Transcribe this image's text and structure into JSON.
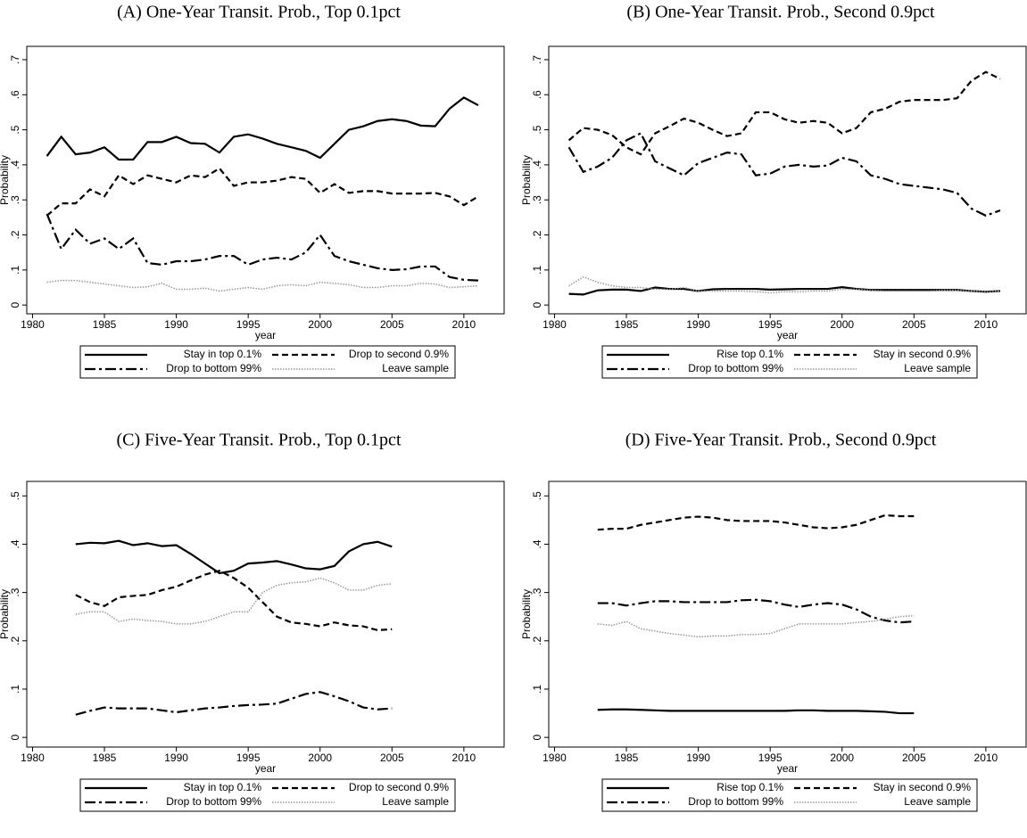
{
  "chart_data": [
    {
      "type": "line",
      "title": "(A) One-Year Transit. Prob., Top 0.1pct",
      "xlabel": "year",
      "ylabel": "Probability",
      "x": [
        1981,
        1982,
        1983,
        1984,
        1985,
        1986,
        1987,
        1988,
        1989,
        1990,
        1991,
        1992,
        1993,
        1994,
        1995,
        1996,
        1997,
        1998,
        1999,
        2000,
        2001,
        2002,
        2003,
        2004,
        2005,
        2006,
        2007,
        2008,
        2009,
        2010,
        2011
      ],
      "xlim": [
        1979.6,
        2012.8
      ],
      "xticks": [
        1980,
        1985,
        1990,
        1995,
        2000,
        2005,
        2010
      ],
      "ylim": [
        -0.025,
        0.738
      ],
      "yticks": [
        0,
        {
          "value": 0.1,
          "label": ".1"
        },
        {
          "value": 0.2,
          "label": ".2"
        },
        {
          "value": 0.3,
          "label": ".3"
        },
        {
          "value": 0.4,
          "label": ".4"
        },
        {
          "value": 0.5,
          "label": ".5"
        },
        {
          "value": 0.6,
          "label": ".6"
        },
        {
          "value": 0.7,
          "label": ".7"
        }
      ],
      "series": [
        {
          "name": "Stay in top 0.1%",
          "color": "#000000",
          "dash": "solid",
          "values": [
            0.425,
            0.48,
            0.43,
            0.435,
            0.45,
            0.415,
            0.415,
            0.465,
            0.465,
            0.48,
            0.462,
            0.46,
            0.435,
            0.48,
            0.487,
            0.475,
            0.46,
            0.45,
            0.44,
            0.42,
            0.46,
            0.5,
            0.51,
            0.525,
            0.53,
            0.525,
            0.512,
            0.51,
            0.56,
            0.592,
            0.57
          ]
        },
        {
          "name": "Drop to second 0.9%",
          "color": "#000000",
          "dash": "dash",
          "values": [
            0.255,
            0.29,
            0.29,
            0.33,
            0.31,
            0.37,
            0.345,
            0.37,
            0.36,
            0.35,
            0.37,
            0.365,
            0.39,
            0.34,
            0.35,
            0.35,
            0.355,
            0.365,
            0.36,
            0.32,
            0.345,
            0.32,
            0.325,
            0.325,
            0.318,
            0.318,
            0.318,
            0.32,
            0.31,
            0.285,
            0.31
          ]
        },
        {
          "name": "Drop to bottom 99%",
          "color": "#000000",
          "dash": "dashdot",
          "values": [
            0.26,
            0.16,
            0.215,
            0.175,
            0.19,
            0.16,
            0.19,
            0.12,
            0.115,
            0.125,
            0.125,
            0.13,
            0.14,
            0.14,
            0.115,
            0.13,
            0.135,
            0.13,
            0.15,
            0.2,
            0.14,
            0.125,
            0.115,
            0.105,
            0.1,
            0.102,
            0.11,
            0.11,
            0.08,
            0.072,
            0.07
          ]
        },
        {
          "name": "Leave sample",
          "color": "#999999",
          "dash": "dot",
          "values": [
            0.065,
            0.07,
            0.07,
            0.065,
            0.06,
            0.055,
            0.05,
            0.052,
            0.062,
            0.045,
            0.045,
            0.048,
            0.04,
            0.045,
            0.05,
            0.045,
            0.055,
            0.058,
            0.055,
            0.065,
            0.062,
            0.058,
            0.05,
            0.05,
            0.055,
            0.055,
            0.062,
            0.06,
            0.05,
            0.052,
            0.055
          ]
        }
      ]
    },
    {
      "type": "line",
      "title": "(B) One-Year Transit. Prob., Second 0.9pct",
      "xlabel": "year",
      "ylabel": "Probability",
      "x": [
        1981,
        1982,
        1983,
        1984,
        1985,
        1986,
        1987,
        1988,
        1989,
        1990,
        1991,
        1992,
        1993,
        1994,
        1995,
        1996,
        1997,
        1998,
        1999,
        2000,
        2001,
        2002,
        2003,
        2004,
        2005,
        2006,
        2007,
        2008,
        2009,
        2010,
        2011
      ],
      "xlim": [
        1979.6,
        2012.8
      ],
      "xticks": [
        1980,
        1985,
        1990,
        1995,
        2000,
        2005,
        2010
      ],
      "ylim": [
        -0.025,
        0.738
      ],
      "yticks": [
        0,
        {
          "value": 0.1,
          "label": ".1"
        },
        {
          "value": 0.2,
          "label": ".2"
        },
        {
          "value": 0.3,
          "label": ".3"
        },
        {
          "value": 0.4,
          "label": ".4"
        },
        {
          "value": 0.5,
          "label": ".5"
        },
        {
          "value": 0.6,
          "label": ".6"
        },
        {
          "value": 0.7,
          "label": ".7"
        }
      ],
      "series": [
        {
          "name": "Rise top 0.1%",
          "color": "#000000",
          "dash": "solid",
          "values": [
            0.032,
            0.03,
            0.042,
            0.044,
            0.044,
            0.04,
            0.05,
            0.046,
            0.046,
            0.04,
            0.045,
            0.046,
            0.046,
            0.046,
            0.044,
            0.045,
            0.046,
            0.046,
            0.046,
            0.051,
            0.046,
            0.043,
            0.043,
            0.043,
            0.043,
            0.043,
            0.043,
            0.043,
            0.04,
            0.038,
            0.04
          ]
        },
        {
          "name": "Stay in second 0.9%",
          "color": "#000000",
          "dash": "dash",
          "values": [
            0.47,
            0.505,
            0.5,
            0.485,
            0.45,
            0.43,
            0.49,
            0.51,
            0.532,
            0.52,
            0.5,
            0.482,
            0.49,
            0.55,
            0.55,
            0.53,
            0.52,
            0.525,
            0.52,
            0.49,
            0.505,
            0.55,
            0.56,
            0.58,
            0.585,
            0.585,
            0.585,
            0.59,
            0.64,
            0.665,
            0.645
          ]
        },
        {
          "name": "Drop to bottom 99%",
          "color": "#000000",
          "dash": "dashdot",
          "values": [
            0.45,
            0.38,
            0.395,
            0.42,
            0.47,
            0.49,
            0.41,
            0.39,
            0.37,
            0.405,
            0.42,
            0.435,
            0.43,
            0.37,
            0.375,
            0.395,
            0.4,
            0.395,
            0.398,
            0.42,
            0.41,
            0.37,
            0.36,
            0.345,
            0.34,
            0.335,
            0.33,
            0.32,
            0.275,
            0.255,
            0.27
          ]
        },
        {
          "name": "Leave sample",
          "color": "#999999",
          "dash": "dot",
          "values": [
            0.055,
            0.08,
            0.065,
            0.055,
            0.05,
            0.05,
            0.045,
            0.045,
            0.05,
            0.04,
            0.04,
            0.04,
            0.04,
            0.038,
            0.035,
            0.038,
            0.038,
            0.04,
            0.04,
            0.045,
            0.045,
            0.042,
            0.04,
            0.04,
            0.04,
            0.04,
            0.042,
            0.042,
            0.04,
            0.038,
            0.04
          ]
        }
      ]
    },
    {
      "type": "line",
      "title": "(C) Five-Year Transit. Prob., Top 0.1pct",
      "xlabel": "year",
      "ylabel": "Probability",
      "x": [
        1983,
        1984,
        1985,
        1986,
        1987,
        1988,
        1989,
        1990,
        1991,
        1992,
        1993,
        1994,
        1995,
        1996,
        1997,
        1998,
        1999,
        2000,
        2001,
        2002,
        2003,
        2004,
        2005
      ],
      "xlim": [
        1979.6,
        2012.8
      ],
      "xticks": [
        1980,
        1985,
        1990,
        1995,
        2000,
        2005,
        2010
      ],
      "ylim": [
        -0.02,
        0.53
      ],
      "yticks": [
        0,
        {
          "value": 0.1,
          "label": ".1"
        },
        {
          "value": 0.2,
          "label": ".2"
        },
        {
          "value": 0.3,
          "label": ".3"
        },
        {
          "value": 0.4,
          "label": ".4"
        },
        {
          "value": 0.5,
          "label": ".5"
        }
      ],
      "series": [
        {
          "name": "Stay in top 0.1%",
          "color": "#000000",
          "dash": "solid",
          "values": [
            0.4,
            0.403,
            0.402,
            0.407,
            0.398,
            0.402,
            0.396,
            0.398,
            0.38,
            0.36,
            0.34,
            0.345,
            0.36,
            0.362,
            0.365,
            0.358,
            0.35,
            0.348,
            0.355,
            0.385,
            0.4,
            0.405,
            0.395
          ]
        },
        {
          "name": "Drop to second 0.9%",
          "color": "#000000",
          "dash": "dash",
          "values": [
            0.295,
            0.28,
            0.272,
            0.29,
            0.293,
            0.295,
            0.305,
            0.312,
            0.325,
            0.337,
            0.345,
            0.33,
            0.31,
            0.28,
            0.25,
            0.238,
            0.235,
            0.23,
            0.238,
            0.232,
            0.23,
            0.222,
            0.224
          ]
        },
        {
          "name": "Drop to bottom 99%",
          "color": "#000000",
          "dash": "dashdot",
          "values": [
            0.047,
            0.055,
            0.062,
            0.06,
            0.06,
            0.06,
            0.056,
            0.052,
            0.056,
            0.06,
            0.062,
            0.065,
            0.067,
            0.068,
            0.07,
            0.08,
            0.09,
            0.094,
            0.085,
            0.075,
            0.062,
            0.058,
            0.06
          ]
        },
        {
          "name": "Leave sample",
          "color": "#999999",
          "dash": "dot",
          "values": [
            0.255,
            0.26,
            0.26,
            0.24,
            0.245,
            0.242,
            0.24,
            0.235,
            0.235,
            0.24,
            0.25,
            0.26,
            0.26,
            0.3,
            0.315,
            0.32,
            0.322,
            0.33,
            0.32,
            0.305,
            0.305,
            0.315,
            0.318
          ]
        }
      ]
    },
    {
      "type": "line",
      "title": "(D) Five-Year Transit. Prob., Second 0.9pct",
      "xlabel": "year",
      "ylabel": "Probability",
      "x": [
        1983,
        1984,
        1985,
        1986,
        1987,
        1988,
        1989,
        1990,
        1991,
        1992,
        1993,
        1994,
        1995,
        1996,
        1997,
        1998,
        1999,
        2000,
        2001,
        2002,
        2003,
        2004,
        2005
      ],
      "xlim": [
        1979.6,
        2012.8
      ],
      "xticks": [
        1980,
        1985,
        1990,
        1995,
        2000,
        2005,
        2010
      ],
      "ylim": [
        -0.02,
        0.53
      ],
      "yticks": [
        0,
        {
          "value": 0.1,
          "label": ".1"
        },
        {
          "value": 0.2,
          "label": ".2"
        },
        {
          "value": 0.3,
          "label": ".3"
        },
        {
          "value": 0.4,
          "label": ".4"
        },
        {
          "value": 0.5,
          "label": ".5"
        }
      ],
      "series": [
        {
          "name": "Rise top 0.1%",
          "color": "#000000",
          "dash": "solid",
          "values": [
            0.057,
            0.058,
            0.058,
            0.057,
            0.056,
            0.055,
            0.055,
            0.055,
            0.055,
            0.055,
            0.055,
            0.055,
            0.055,
            0.055,
            0.056,
            0.056,
            0.055,
            0.055,
            0.055,
            0.054,
            0.053,
            0.05,
            0.05
          ]
        },
        {
          "name": "Stay in second 0.9%",
          "color": "#000000",
          "dash": "dash",
          "values": [
            0.43,
            0.432,
            0.432,
            0.44,
            0.445,
            0.45,
            0.455,
            0.457,
            0.455,
            0.45,
            0.448,
            0.448,
            0.448,
            0.445,
            0.44,
            0.435,
            0.433,
            0.435,
            0.44,
            0.45,
            0.46,
            0.458,
            0.458
          ]
        },
        {
          "name": "Drop to bottom 99%",
          "color": "#000000",
          "dash": "dashdot",
          "values": [
            0.278,
            0.278,
            0.273,
            0.278,
            0.282,
            0.282,
            0.28,
            0.28,
            0.28,
            0.28,
            0.284,
            0.285,
            0.282,
            0.275,
            0.27,
            0.275,
            0.278,
            0.275,
            0.265,
            0.25,
            0.242,
            0.238,
            0.24
          ]
        },
        {
          "name": "Leave sample",
          "color": "#999999",
          "dash": "dot",
          "values": [
            0.235,
            0.232,
            0.24,
            0.225,
            0.22,
            0.215,
            0.212,
            0.208,
            0.21,
            0.21,
            0.213,
            0.213,
            0.215,
            0.225,
            0.235,
            0.235,
            0.235,
            0.235,
            0.238,
            0.24,
            0.245,
            0.25,
            0.252
          ]
        }
      ]
    }
  ]
}
